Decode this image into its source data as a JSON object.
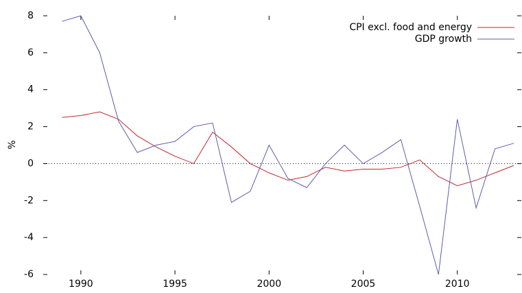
{
  "chart_data": {
    "type": "line",
    "y_label": "%",
    "x": [
      1989,
      1990,
      1991,
      1992,
      1993,
      1994,
      1995,
      1996,
      1997,
      1998,
      1999,
      2000,
      2001,
      2002,
      2003,
      2004,
      2005,
      2006,
      2007,
      2008,
      2009,
      2010,
      2011,
      2012,
      2013
    ],
    "series": [
      {
        "name": "CPI excl. food and energy",
        "color": "#c0282d",
        "values": [
          2.5,
          2.6,
          2.8,
          2.4,
          1.5,
          0.9,
          0.4,
          0.0,
          1.7,
          0.9,
          0.0,
          -0.5,
          -0.9,
          -0.7,
          -0.2,
          -0.4,
          -0.3,
          -0.3,
          -0.2,
          0.2,
          -0.7,
          -1.2,
          -0.9,
          -0.5,
          -0.1
        ]
      },
      {
        "name": "GDP growth",
        "color": "#5c5cac",
        "values": [
          7.7,
          8.0,
          6.0,
          2.3,
          0.6,
          1.0,
          1.2,
          2.0,
          2.2,
          -2.1,
          -1.5,
          1.0,
          -0.8,
          -1.3,
          0.0,
          1.0,
          0.0,
          0.6,
          1.3,
          -2.3,
          -6.0,
          2.4,
          -2.4,
          0.8,
          1.1
        ]
      }
    ],
    "xlim": [
      1988,
      2013.4
    ],
    "xticks": [
      1990,
      1995,
      2000,
      2005,
      2010
    ],
    "ylim": [
      -6,
      8
    ],
    "yticks": [
      -6,
      -4,
      -2,
      0,
      2,
      4,
      6,
      8
    ],
    "zero_line": true,
    "legend": "top-right"
  }
}
